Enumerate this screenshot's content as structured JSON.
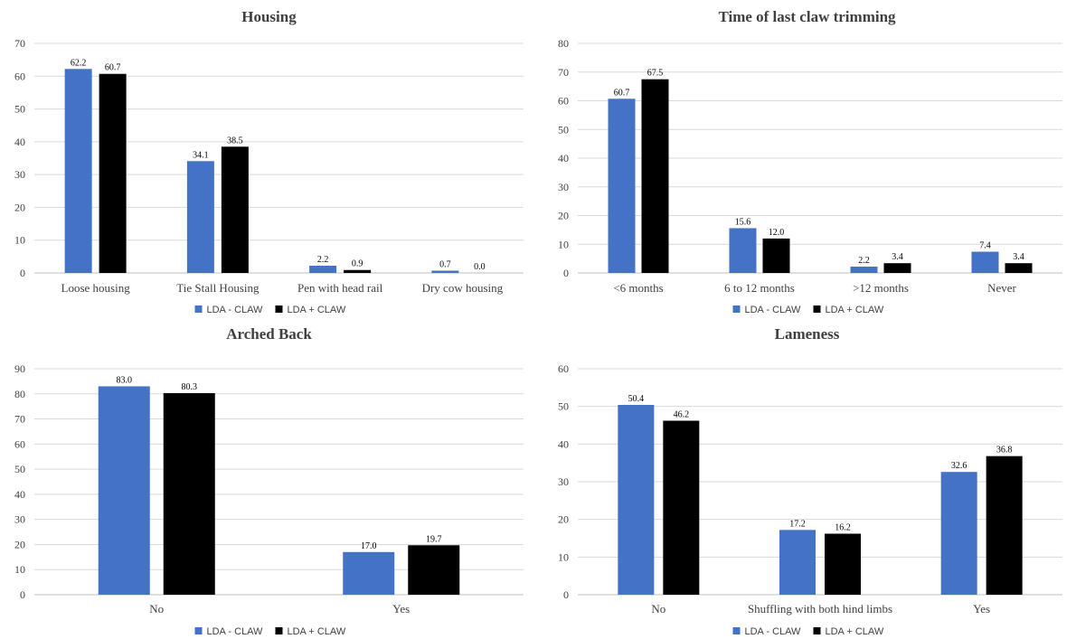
{
  "chart_data": [
    {
      "type": "bar",
      "title": "Housing",
      "categories": [
        "Loose housing",
        "Tie Stall Housing",
        "Pen with head rail",
        "Dry cow housing"
      ],
      "series": [
        {
          "name": "LDA - CLAW",
          "color": "#4472c4",
          "values": [
            62.2,
            34.1,
            2.2,
            0.7
          ]
        },
        {
          "name": "LDA + CLAW",
          "color": "#000000",
          "values": [
            60.7,
            38.5,
            0.9,
            0.0
          ]
        }
      ],
      "ylim": [
        0,
        70
      ],
      "yticks": [
        0,
        10,
        20,
        30,
        40,
        50,
        60,
        70
      ],
      "grid": true,
      "legend": "bottom-center"
    },
    {
      "type": "bar",
      "title": "Time of last claw trimming",
      "categories": [
        "<6 months",
        "6 to 12 months",
        ">12 months",
        "Never"
      ],
      "series": [
        {
          "name": "LDA - CLAW",
          "color": "#4472c4",
          "values": [
            60.7,
            15.6,
            2.2,
            7.4
          ]
        },
        {
          "name": "LDA + CLAW",
          "color": "#000000",
          "values": [
            67.5,
            12.0,
            3.4,
            3.4
          ]
        }
      ],
      "ylim": [
        0,
        80
      ],
      "yticks": [
        0,
        10,
        20,
        30,
        40,
        50,
        60,
        70,
        80
      ],
      "grid": true,
      "legend": "bottom-center"
    },
    {
      "type": "bar",
      "title": "Arched Back",
      "categories": [
        "No",
        "Yes"
      ],
      "series": [
        {
          "name": "LDA - CLAW",
          "color": "#4472c4",
          "values": [
            83.0,
            17.0
          ]
        },
        {
          "name": "LDA + CLAW",
          "color": "#000000",
          "values": [
            80.3,
            19.7
          ]
        }
      ],
      "ylim": [
        0,
        90
      ],
      "yticks": [
        0,
        10,
        20,
        30,
        40,
        50,
        60,
        70,
        80,
        90
      ],
      "grid": true,
      "legend": "bottom-center"
    },
    {
      "type": "bar",
      "title": "Lameness",
      "categories": [
        "No",
        "Shuffling with both hind limbs",
        "Yes"
      ],
      "series": [
        {
          "name": "LDA - CLAW",
          "color": "#4472c4",
          "values": [
            50.4,
            17.2,
            32.6
          ]
        },
        {
          "name": "LDA + CLAW",
          "color": "#000000",
          "values": [
            46.2,
            16.2,
            36.8
          ]
        }
      ],
      "ylim": [
        0,
        60
      ],
      "yticks": [
        0,
        10,
        20,
        30,
        40,
        50,
        60
      ],
      "grid": true,
      "legend": "bottom-center"
    }
  ]
}
